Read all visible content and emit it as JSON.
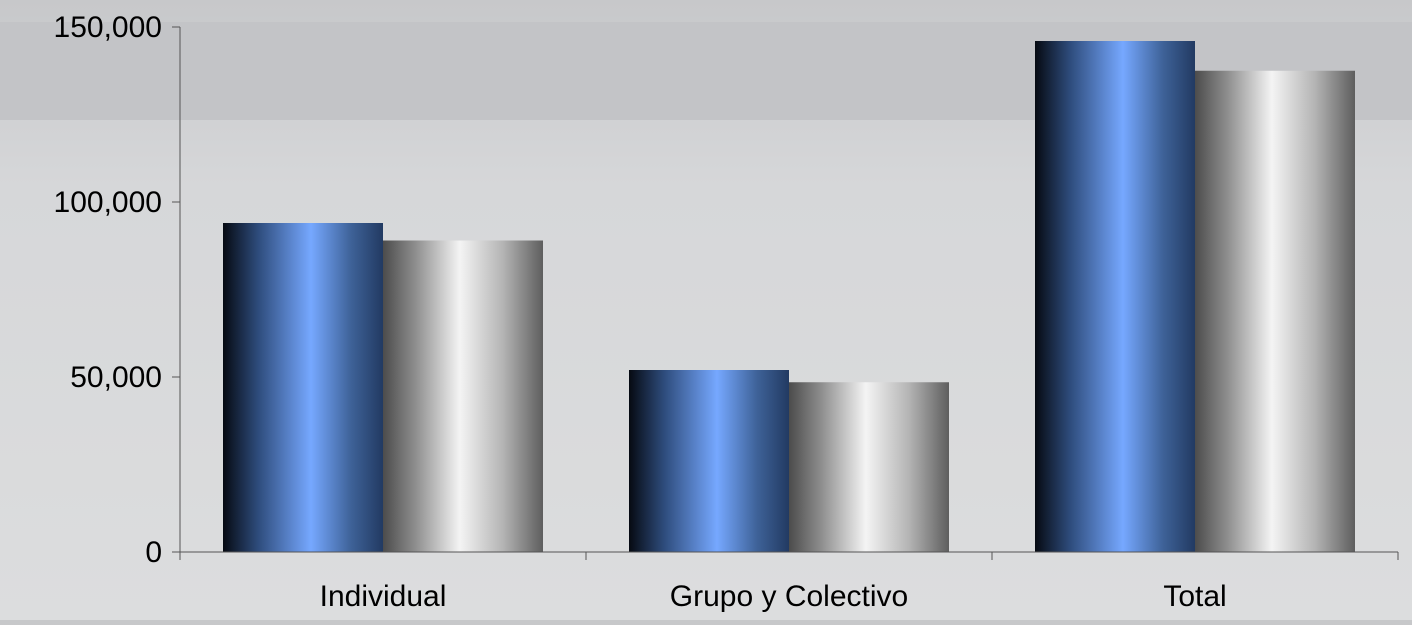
{
  "chart_data": {
    "type": "bar",
    "categories": [
      "Individual",
      "Grupo y Colectivo",
      "Total"
    ],
    "series": [
      {
        "values": [
          94000,
          52000,
          146000
        ]
      },
      {
        "values": [
          89000,
          48500,
          137500
        ]
      }
    ],
    "title": "",
    "xlabel": "",
    "ylabel": "",
    "ylim": [
      0,
      150000
    ],
    "yticks": [
      {
        "value": 0,
        "label": "0"
      },
      {
        "value": 50000,
        "label": "50,000"
      },
      {
        "value": 100000,
        "label": "100,000"
      },
      {
        "value": 150000,
        "label": "150,000"
      }
    ],
    "grid": false,
    "legend": "none",
    "colors": {
      "series_1": "#6fa3ff",
      "series_1_edge": "#0a0f18",
      "series_2": "#ececec",
      "series_2_edge": "#5a5a5a",
      "background": "#d7d8da",
      "band": "#c4c5c8",
      "axis": "#555555",
      "text": "#000000"
    }
  }
}
